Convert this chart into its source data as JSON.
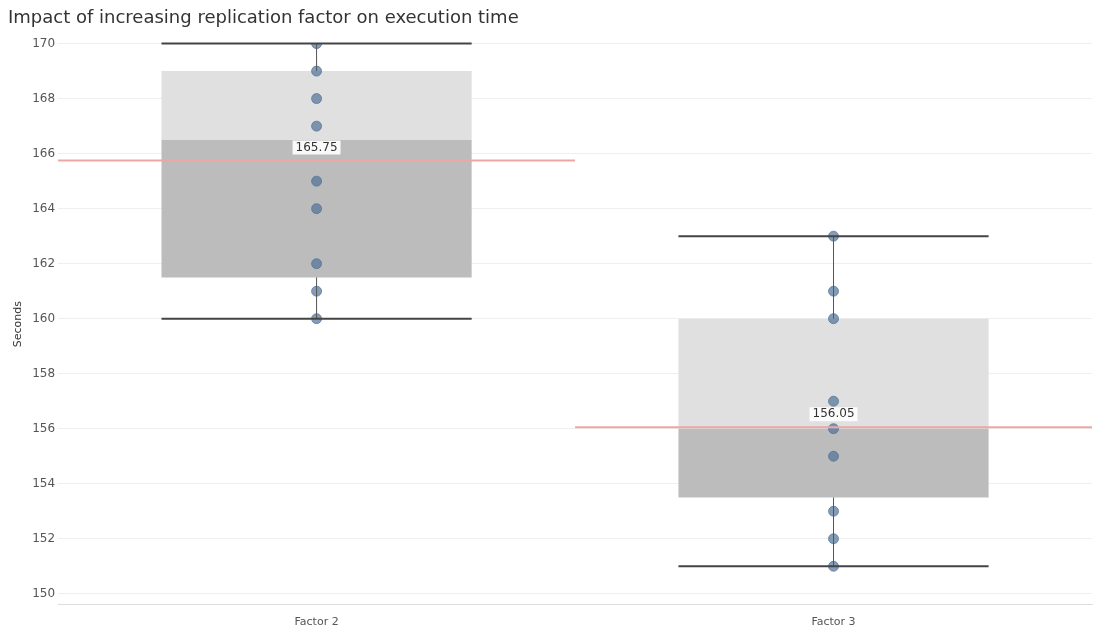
{
  "chart_data": {
    "type": "box",
    "title": "Impact of increasing replication factor on execution time",
    "ylabel": "Seconds",
    "categories": [
      "Factor 2",
      "Factor 3"
    ],
    "boxes": [
      {
        "low": 160,
        "q1": 161.5,
        "median": 166.5,
        "q3": 169,
        "high": 170
      },
      {
        "low": 151,
        "q1": 153.5,
        "median": 156,
        "q3": 160,
        "high": 163
      }
    ],
    "ref_lines": [
      {
        "axis": "y",
        "value": 165.75,
        "label": "165.75",
        "color": "#eba7a7"
      },
      {
        "axis": "y",
        "value": 156.05,
        "label": "156.05",
        "color": "#eba7a7"
      }
    ],
    "series": [
      {
        "type": "scatter",
        "color": "#4e6f96",
        "x": [
          "Factor 2",
          "Factor 2",
          "Factor 2",
          "Factor 2",
          "Factor 2",
          "Factor 2",
          "Factor 2",
          "Factor 2",
          "Factor 2",
          "Factor 3",
          "Factor 3",
          "Factor 3",
          "Factor 3",
          "Factor 3",
          "Factor 3",
          "Factor 3",
          "Factor 3",
          "Factor 3"
        ],
        "values": [
          170,
          169,
          168,
          167,
          165,
          164,
          162,
          161,
          160,
          163,
          161,
          160,
          157,
          156,
          155,
          153,
          152,
          151
        ]
      }
    ],
    "ylim": [
      149.6,
      170
    ],
    "yticks": [
      150,
      152,
      154,
      156,
      158,
      160,
      162,
      164,
      166,
      168,
      170
    ],
    "grid": "y",
    "legend": false,
    "marker": "circle"
  }
}
